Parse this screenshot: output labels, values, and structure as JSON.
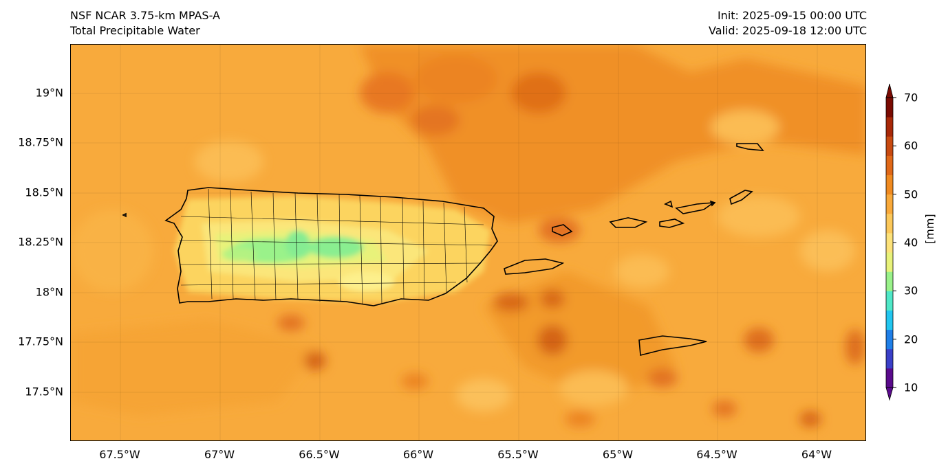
{
  "header": {
    "model": "NSF NCAR 3.75-km MPAS-A",
    "field": "Total Precipitable Water",
    "init": "Init: 2025-09-15 00:00 UTC",
    "valid": "Valid: 2025-09-18 12:00 UTC"
  },
  "map": {
    "lat_labels": [
      {
        "value": 19.0,
        "label": "19°N"
      },
      {
        "value": 18.75,
        "label": "18.75°N"
      },
      {
        "value": 18.5,
        "label": "18.5°N"
      },
      {
        "value": 18.25,
        "label": "18.25°N"
      },
      {
        "value": 18.0,
        "label": "18°N"
      },
      {
        "value": 17.75,
        "label": "17.75°N"
      },
      {
        "value": 17.5,
        "label": "17.5°N"
      }
    ],
    "lon_labels": [
      {
        "value": -67.5,
        "label": "67.5°W"
      },
      {
        "value": -67.0,
        "label": "67°W"
      },
      {
        "value": -66.5,
        "label": "66.5°W"
      },
      {
        "value": -66.0,
        "label": "66°W"
      },
      {
        "value": -65.5,
        "label": "65.5°W"
      },
      {
        "value": -65.0,
        "label": "65°W"
      },
      {
        "value": -64.5,
        "label": "64.5°W"
      },
      {
        "value": -64.0,
        "label": "64°W"
      }
    ],
    "extent": {
      "lon_min": -67.74,
      "lon_max": -63.75,
      "lat_min": 17.24,
      "lat_max": 19.24
    }
  },
  "colorbar": {
    "unit_label": "[mm]",
    "min": 10,
    "max": 70,
    "ticks": [
      10,
      20,
      30,
      40,
      50,
      60,
      70
    ],
    "colors": [
      "#5a0a8c",
      "#3a3fc8",
      "#1f7fe8",
      "#22c6f0",
      "#4fe8c8",
      "#9af28a",
      "#e8f27a",
      "#fde27a",
      "#fcc85a",
      "#f9a93a",
      "#f08a20",
      "#e06818",
      "#c84a10",
      "#a82808",
      "#7a0a02"
    ]
  }
}
